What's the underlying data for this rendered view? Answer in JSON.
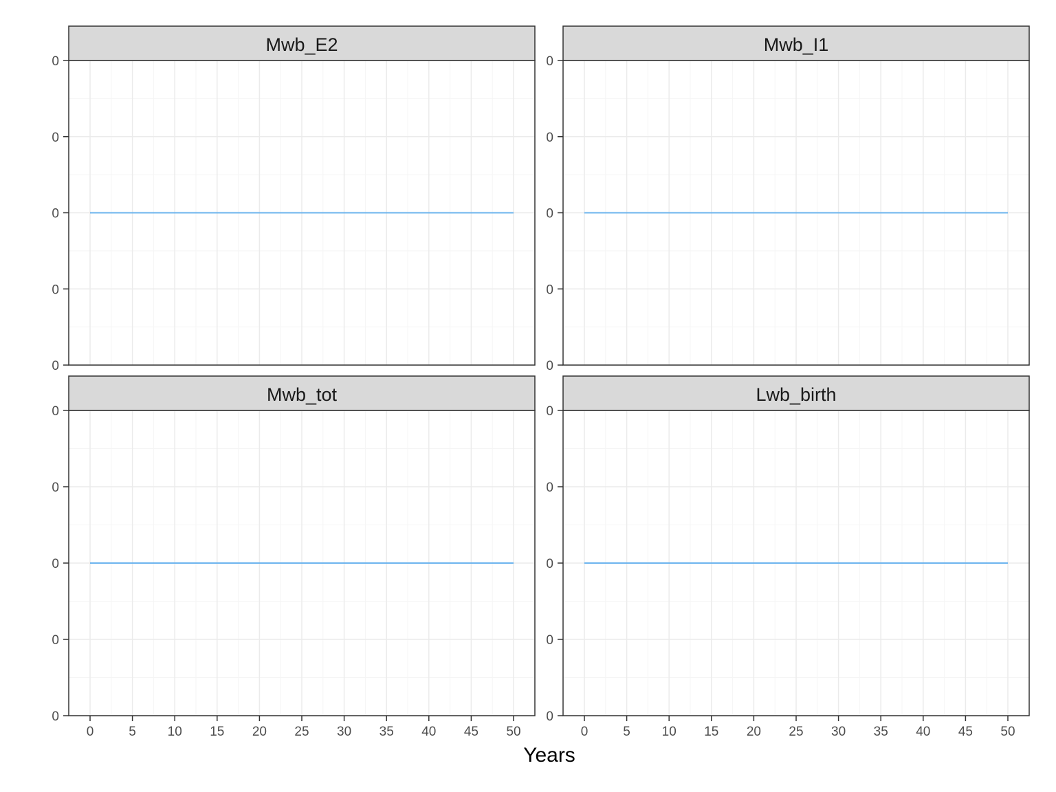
{
  "chart_data": {
    "type": "line",
    "layout": "facet-grid-2x2",
    "xlabel": "Years",
    "ylabel": "",
    "x_range": [
      0,
      50
    ],
    "x_ticks": [
      0,
      5,
      10,
      15,
      20,
      25,
      30,
      35,
      40,
      45,
      50
    ],
    "y_tick_labels": [
      "0",
      "0",
      "0",
      "0",
      "0"
    ],
    "grid": true,
    "legend": "none",
    "colors": {
      "line": "#6cb4ee",
      "strip_fill": "#d9d9d9",
      "panel_border": "#333333",
      "grid_major": "#ebebeb",
      "grid_minor": "#f5f5f5"
    },
    "panels": [
      {
        "title": "Mwb_E2",
        "x": [
          0,
          50
        ],
        "y": [
          0,
          0
        ]
      },
      {
        "title": "Mwb_I1",
        "x": [
          0,
          50
        ],
        "y": [
          0,
          0
        ]
      },
      {
        "title": "Mwb_tot",
        "x": [
          0,
          50
        ],
        "y": [
          0,
          0
        ]
      },
      {
        "title": "Lwb_birth",
        "x": [
          0,
          50
        ],
        "y": [
          0,
          0
        ]
      }
    ]
  }
}
